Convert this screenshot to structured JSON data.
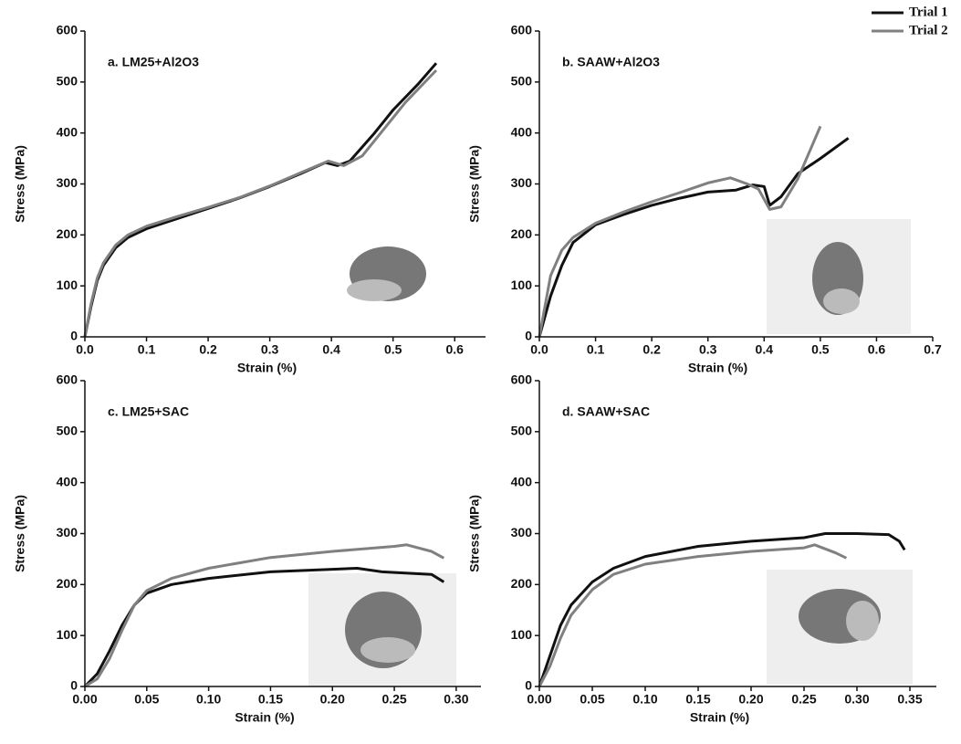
{
  "chart_data": [
    {
      "type": "line",
      "title": "a. LM25+Al2O3",
      "x_label": "Strain (%)",
      "y_label": "Stress (MPa)",
      "xlim": [
        0,
        0.65
      ],
      "ylim": [
        0,
        600
      ],
      "xticks": [
        {
          "value": 0,
          "label": "0.0"
        },
        0.1,
        0.2,
        0.3,
        0.4,
        0.5,
        0.6
      ],
      "yticks": [
        0,
        100,
        200,
        300,
        400,
        500,
        600
      ],
      "series": [
        {
          "color": "#111111",
          "x": [
            0,
            0.01,
            0.02,
            0.03,
            0.05,
            0.07,
            0.1,
            0.15,
            0.2,
            0.25,
            0.3,
            0.35,
            0.39,
            0.41,
            0.43,
            0.47,
            0.5,
            0.54,
            0.57
          ],
          "values": [
            0,
            60,
            110,
            140,
            175,
            195,
            212,
            232,
            252,
            272,
            295,
            320,
            342,
            336,
            345,
            400,
            445,
            495,
            537
          ]
        },
        {
          "color": "#808080",
          "x": [
            0,
            0.01,
            0.02,
            0.03,
            0.05,
            0.07,
            0.1,
            0.15,
            0.2,
            0.25,
            0.3,
            0.35,
            0.395,
            0.42,
            0.45,
            0.48,
            0.52,
            0.57
          ],
          "values": [
            0,
            65,
            115,
            145,
            180,
            200,
            217,
            236,
            254,
            273,
            296,
            322,
            345,
            336,
            355,
            400,
            460,
            523
          ]
        }
      ]
    },
    {
      "type": "line",
      "title": "b. SAAW+Al2O3",
      "x_label": "Strain (%)",
      "y_label": "Stress (MPa)",
      "xlim": [
        0,
        0.7
      ],
      "ylim": [
        0,
        600
      ],
      "xticks": [
        {
          "value": 0,
          "label": "0.0"
        },
        0.1,
        0.2,
        0.3,
        0.4,
        0.5,
        0.6,
        0.7
      ],
      "yticks": [
        0,
        100,
        200,
        300,
        400,
        500,
        600
      ],
      "legend": "upper right",
      "series": [
        {
          "name": "Trial 1",
          "color": "#111111",
          "x": [
            0,
            0.02,
            0.04,
            0.06,
            0.1,
            0.15,
            0.2,
            0.25,
            0.3,
            0.35,
            0.38,
            0.4,
            0.41,
            0.43,
            0.46,
            0.5,
            0.55
          ],
          "values": [
            0,
            80,
            140,
            185,
            220,
            240,
            258,
            272,
            284,
            288,
            298,
            295,
            258,
            275,
            320,
            350,
            390
          ]
        },
        {
          "name": "Trial 2",
          "color": "#808080",
          "x": [
            0,
            0.02,
            0.04,
            0.06,
            0.1,
            0.15,
            0.2,
            0.25,
            0.3,
            0.34,
            0.37,
            0.39,
            0.41,
            0.43,
            0.46,
            0.5
          ],
          "values": [
            0,
            120,
            170,
            195,
            223,
            245,
            265,
            283,
            302,
            312,
            300,
            290,
            250,
            255,
            310,
            413
          ]
        }
      ]
    },
    {
      "type": "line",
      "title": "c. LM25+SAC",
      "x_label": "Strain (%)",
      "y_label": "Stress (MPa)",
      "xlim": [
        0,
        0.32
      ],
      "ylim": [
        0,
        600
      ],
      "xticks": [
        {
          "value": 0,
          "label": "0.00"
        },
        0.05,
        {
          "value": 0.1,
          "label": "0.10"
        },
        0.15,
        {
          "value": 0.2,
          "label": "0.20"
        },
        0.25,
        {
          "value": 0.3,
          "label": "0.30"
        }
      ],
      "yticks": [
        0,
        100,
        200,
        300,
        400,
        500,
        600
      ],
      "series": [
        {
          "color": "#111111",
          "x": [
            0,
            0.01,
            0.02,
            0.03,
            0.04,
            0.05,
            0.07,
            0.1,
            0.15,
            0.2,
            0.22,
            0.24,
            0.28,
            0.29
          ],
          "values": [
            0,
            25,
            70,
            120,
            160,
            183,
            200,
            212,
            225,
            230,
            232,
            225,
            220,
            205
          ]
        },
        {
          "color": "#808080",
          "x": [
            0,
            0.01,
            0.02,
            0.03,
            0.04,
            0.05,
            0.07,
            0.1,
            0.15,
            0.2,
            0.25,
            0.26,
            0.28,
            0.29
          ],
          "values": [
            0,
            15,
            55,
            110,
            160,
            188,
            212,
            232,
            253,
            265,
            275,
            278,
            265,
            252
          ]
        }
      ]
    },
    {
      "type": "line",
      "title": "d. SAAW+SAC",
      "x_label": "Strain (%)",
      "y_label": "Stress (MPa)",
      "xlim": [
        0,
        0.375
      ],
      "ylim": [
        0,
        600
      ],
      "xticks": [
        {
          "value": 0,
          "label": "0.00"
        },
        0.05,
        {
          "value": 0.1,
          "label": "0.10"
        },
        0.15,
        {
          "value": 0.2,
          "label": "0.20"
        },
        0.25,
        {
          "value": 0.3,
          "label": "0.30"
        },
        0.35
      ],
      "yticks": [
        0,
        100,
        200,
        300,
        400,
        500,
        600
      ],
      "series": [
        {
          "color": "#111111",
          "x": [
            0,
            0.01,
            0.02,
            0.03,
            0.05,
            0.07,
            0.1,
            0.15,
            0.2,
            0.25,
            0.27,
            0.3,
            0.33,
            0.34,
            0.345
          ],
          "values": [
            0,
            60,
            120,
            160,
            205,
            232,
            255,
            275,
            285,
            292,
            300,
            300,
            298,
            285,
            268
          ]
        },
        {
          "color": "#808080",
          "x": [
            0,
            0.01,
            0.02,
            0.03,
            0.05,
            0.07,
            0.1,
            0.15,
            0.2,
            0.25,
            0.26,
            0.28,
            0.29
          ],
          "values": [
            0,
            40,
            95,
            140,
            190,
            220,
            240,
            255,
            265,
            272,
            278,
            262,
            252
          ]
        }
      ]
    }
  ]
}
